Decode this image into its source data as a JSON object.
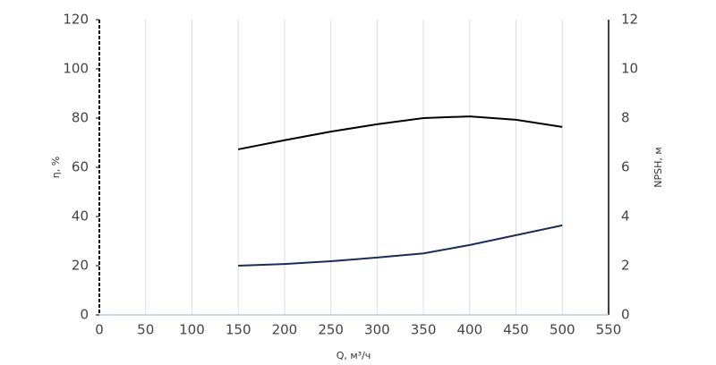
{
  "chart_data": {
    "type": "line",
    "x_label": "Q, м³/ч",
    "y_label": "η, %",
    "y2_label": "NPSH, м",
    "x": [
      150,
      200,
      250,
      300,
      350,
      400,
      450,
      500
    ],
    "series": [
      {
        "color": "#000000",
        "values": [
          67.3,
          71,
          74.5,
          77.5,
          80,
          80.7,
          79.3,
          76.4
        ]
      },
      {
        "color": "#1a2d5a",
        "axis": "y2",
        "values": [
          2.0,
          2.07,
          2.18,
          2.33,
          2.5,
          2.84,
          3.24,
          3.64
        ]
      }
    ],
    "xlim": [
      0,
      550
    ],
    "xticks": [
      0,
      50,
      100,
      150,
      200,
      250,
      300,
      350,
      400,
      450,
      500,
      550
    ],
    "ylim": [
      0,
      120
    ],
    "yticks": [
      0,
      20,
      40,
      60,
      80,
      100,
      120
    ],
    "y2lim": [
      0,
      12
    ],
    "y2ticks": [
      0,
      2,
      4,
      6,
      8,
      10,
      12
    ],
    "grid": "x"
  }
}
